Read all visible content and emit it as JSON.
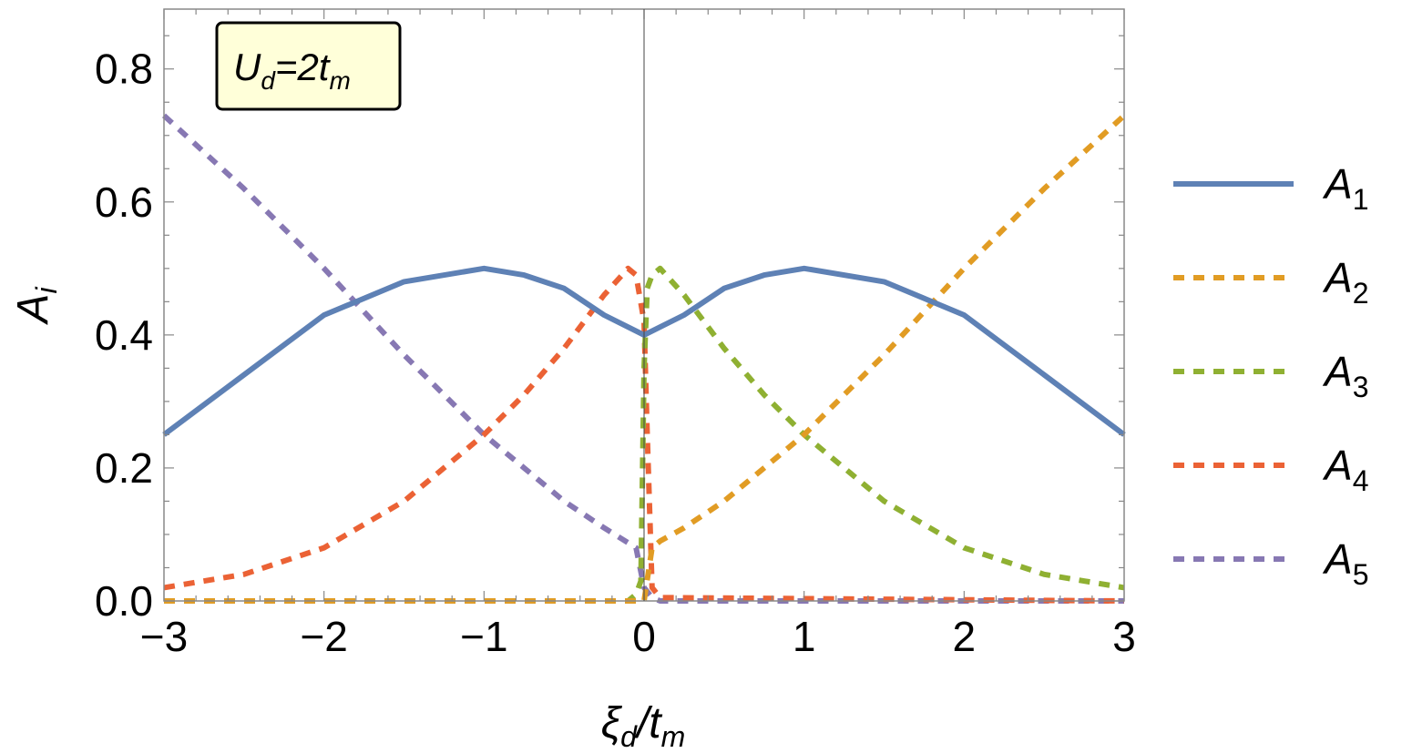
{
  "chart_data": {
    "type": "line",
    "xlabel": {
      "main": "ξ",
      "sub1": "d",
      "slash": "/t",
      "sub2": "m"
    },
    "ylabel": {
      "main": "A",
      "sub": "i"
    },
    "xlim": [
      -3,
      3
    ],
    "ylim": [
      0,
      0.89
    ],
    "xticks": [
      -3,
      -2,
      -1,
      0,
      1,
      2,
      3
    ],
    "xtick_labels": [
      "−3",
      "−2",
      "−1",
      "0",
      "1",
      "2",
      "3"
    ],
    "yticks": [
      0,
      0.2,
      0.4,
      0.6,
      0.8
    ],
    "ytick_labels": [
      "0.0",
      "0.2",
      "0.4",
      "0.6",
      "0.8"
    ],
    "grid": false,
    "legend": "right",
    "annotation": {
      "main": "U",
      "sub1": "d",
      "eq": "=2t",
      "sub2": "m",
      "background": "#ffffd9"
    },
    "series": [
      {
        "name": "A",
        "sub": "1",
        "color": "#5e81b5",
        "dash": "solid",
        "x": [
          -3,
          -2.5,
          -2,
          -1.5,
          -1,
          -0.75,
          -0.5,
          -0.25,
          0,
          0.25,
          0.5,
          0.75,
          1,
          1.5,
          2,
          2.5,
          3
        ],
        "y": [
          0.25,
          0.34,
          0.43,
          0.48,
          0.5,
          0.49,
          0.47,
          0.43,
          0.4,
          0.43,
          0.47,
          0.49,
          0.5,
          0.48,
          0.43,
          0.34,
          0.25
        ]
      },
      {
        "name": "A",
        "sub": "2",
        "color": "#e19c24",
        "dash": "dashed",
        "x": [
          -3,
          -1,
          0,
          0.05,
          0.1,
          0.25,
          0.5,
          0.75,
          1,
          1.5,
          2,
          2.5,
          3
        ],
        "y": [
          0,
          0,
          0,
          0.08,
          0.09,
          0.11,
          0.15,
          0.2,
          0.25,
          0.37,
          0.5,
          0.62,
          0.73
        ]
      },
      {
        "name": "A",
        "sub": "3",
        "color": "#8fb032",
        "dash": "dashed",
        "x": [
          -3,
          -0.1,
          -0.05,
          -0.02,
          0,
          0.02,
          0.05,
          0.1,
          0.25,
          0.5,
          0.75,
          1,
          1.5,
          2,
          2.5,
          3
        ],
        "y": [
          0,
          0,
          0.01,
          0.03,
          0.35,
          0.47,
          0.49,
          0.5,
          0.46,
          0.38,
          0.31,
          0.25,
          0.15,
          0.08,
          0.04,
          0.02
        ]
      },
      {
        "name": "A",
        "sub": "4",
        "color": "#eb6235",
        "dash": "dashed",
        "x": [
          -3,
          -2.5,
          -2,
          -1.5,
          -1,
          -0.75,
          -0.5,
          -0.25,
          -0.1,
          -0.05,
          0,
          0.02,
          0.05,
          0.1,
          3
        ],
        "y": [
          0.02,
          0.04,
          0.08,
          0.15,
          0.25,
          0.31,
          0.38,
          0.46,
          0.5,
          0.49,
          0.42,
          0.25,
          0.02,
          0.005,
          0
        ]
      },
      {
        "name": "A",
        "sub": "5",
        "color": "#8778b3",
        "dash": "dashed",
        "x": [
          -3,
          -2.5,
          -2,
          -1.5,
          -1,
          -0.75,
          -0.5,
          -0.25,
          -0.05,
          0,
          0.05,
          0.1,
          3
        ],
        "y": [
          0.73,
          0.62,
          0.5,
          0.37,
          0.25,
          0.2,
          0.15,
          0.11,
          0.08,
          0.02,
          0.005,
          0,
          0
        ]
      }
    ]
  }
}
